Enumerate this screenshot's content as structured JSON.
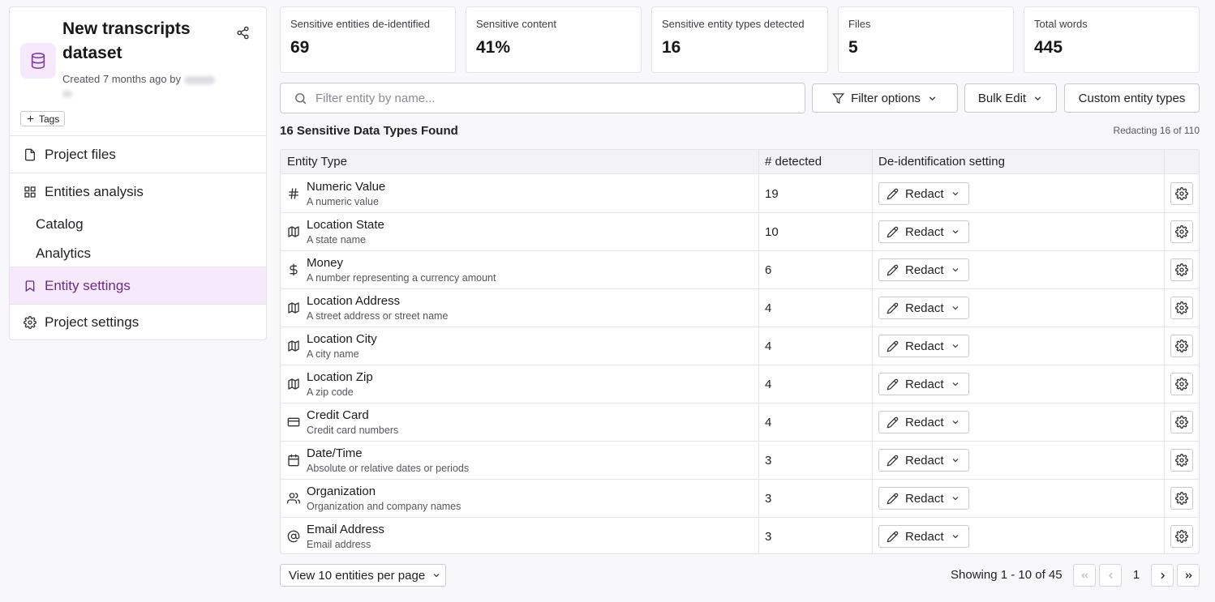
{
  "project": {
    "title": "New transcripts dataset",
    "created": "Created 7 months ago by",
    "tags_label": "Tags"
  },
  "nav": {
    "project_files": "Project files",
    "entities_analysis": "Entities analysis",
    "catalog": "Catalog",
    "analytics": "Analytics",
    "entity_settings": "Entity settings",
    "project_settings": "Project settings"
  },
  "stats": [
    {
      "label": "Sensitive entities de-identified",
      "value": "69"
    },
    {
      "label": "Sensitive content",
      "value": "41%"
    },
    {
      "label": "Sensitive entity types detected",
      "value": "16"
    },
    {
      "label": "Files",
      "value": "5"
    },
    {
      "label": "Total words",
      "value": "445"
    }
  ],
  "toolbar": {
    "search_placeholder": "Filter entity by name...",
    "filter_options": "Filter options",
    "bulk_edit": "Bulk Edit",
    "custom_entity_types": "Custom entity types"
  },
  "summary": {
    "found": "16 Sensitive Data Types Found",
    "redacting": "Redacting 16 of 110"
  },
  "table": {
    "headers": {
      "entity_type": "Entity Type",
      "detected": "# detected",
      "setting": "De-identification setting"
    },
    "rows": [
      {
        "icon": "hash-icon",
        "name": "Numeric Value",
        "desc": "A numeric value",
        "count": "19",
        "setting": "Redact"
      },
      {
        "icon": "map-icon",
        "name": "Location State",
        "desc": "A state name",
        "count": "10",
        "setting": "Redact"
      },
      {
        "icon": "dollar-icon",
        "name": "Money",
        "desc": "A number representing a currency amount",
        "count": "6",
        "setting": "Redact"
      },
      {
        "icon": "map-icon",
        "name": "Location Address",
        "desc": "A street address or street name",
        "count": "4",
        "setting": "Redact"
      },
      {
        "icon": "map-icon",
        "name": "Location City",
        "desc": "A city name",
        "count": "4",
        "setting": "Redact"
      },
      {
        "icon": "map-icon",
        "name": "Location Zip",
        "desc": "A zip code",
        "count": "4",
        "setting": "Redact"
      },
      {
        "icon": "credit-card-icon",
        "name": "Credit Card",
        "desc": "Credit card numbers",
        "count": "4",
        "setting": "Redact"
      },
      {
        "icon": "calendar-icon",
        "name": "Date/Time",
        "desc": "Absolute or relative dates or periods",
        "count": "3",
        "setting": "Redact"
      },
      {
        "icon": "users-icon",
        "name": "Organization",
        "desc": "Organization and company names",
        "count": "3",
        "setting": "Redact"
      },
      {
        "icon": "at-sign-icon",
        "name": "Email Address",
        "desc": "Email address",
        "count": "3",
        "setting": "Redact"
      }
    ]
  },
  "footer": {
    "per_page": "View 10 entities per page",
    "showing": "Showing 1 - 10 of 45",
    "page": "1"
  },
  "colors": {
    "accent": "#6c2b8a",
    "accent_bg": "#f6e9fb",
    "border": "#e3e3e8"
  }
}
